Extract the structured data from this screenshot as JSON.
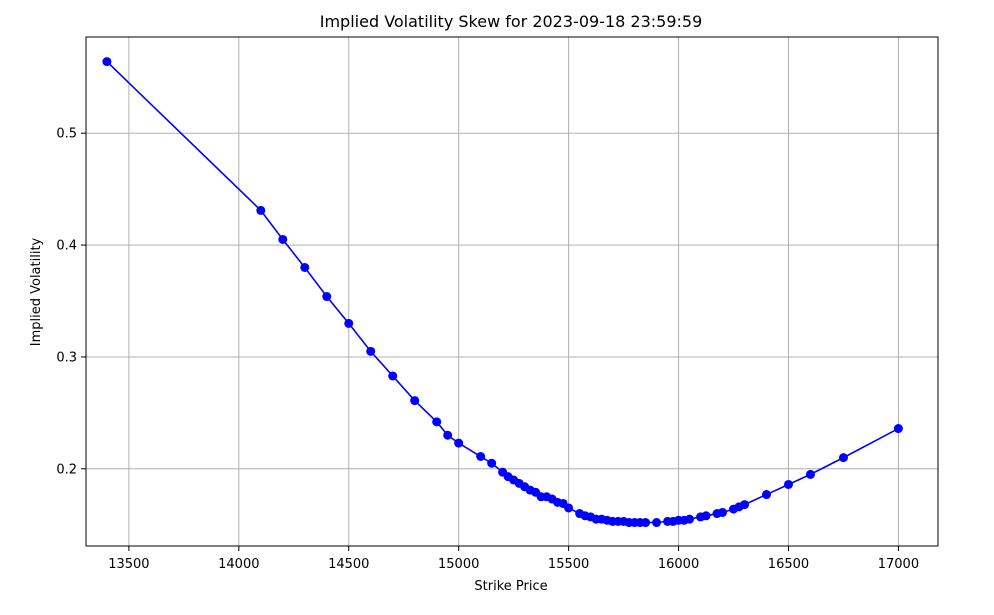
{
  "chart_data": {
    "type": "line",
    "title": "Implied Volatility Skew for 2023-09-18 23:59:59",
    "xlabel": "Strike Price",
    "ylabel": "Implied Volatility",
    "xlim": [
      13305,
      17180
    ],
    "ylim": [
      0.131,
      0.586
    ],
    "x_ticks": [
      13500,
      14000,
      14500,
      15000,
      15500,
      16000,
      16500,
      17000
    ],
    "y_ticks": [
      0.2,
      0.3,
      0.4,
      0.5
    ],
    "x_tick_labels": [
      "13500",
      "14000",
      "14500",
      "15000",
      "15500",
      "16000",
      "16500",
      "17000"
    ],
    "y_tick_labels": [
      "0.2",
      "0.3",
      "0.4",
      "0.5"
    ],
    "grid": true,
    "colors": {
      "series": "#0000ff",
      "grid": "#b0b0b0"
    },
    "series": [
      {
        "marker": "circle",
        "x": [
          13400,
          14100,
          14200,
          14300,
          14400,
          14500,
          14600,
          14700,
          14800,
          14900,
          14950,
          15000,
          15100,
          15150,
          15200,
          15225,
          15250,
          15275,
          15300,
          15325,
          15350,
          15375,
          15400,
          15425,
          15450,
          15475,
          15500,
          15550,
          15575,
          15600,
          15625,
          15650,
          15675,
          15700,
          15725,
          15750,
          15775,
          15800,
          15825,
          15850,
          15900,
          15950,
          15975,
          16000,
          16025,
          16050,
          16100,
          16125,
          16175,
          16200,
          16250,
          16275,
          16300,
          16400,
          16500,
          16600,
          16750,
          17000
        ],
        "y": [
          0.564,
          0.431,
          0.405,
          0.38,
          0.354,
          0.33,
          0.305,
          0.283,
          0.261,
          0.242,
          0.23,
          0.223,
          0.211,
          0.205,
          0.197,
          0.193,
          0.19,
          0.187,
          0.184,
          0.181,
          0.179,
          0.175,
          0.175,
          0.173,
          0.17,
          0.169,
          0.165,
          0.16,
          0.158,
          0.157,
          0.155,
          0.155,
          0.154,
          0.153,
          0.153,
          0.153,
          0.152,
          0.152,
          0.152,
          0.152,
          0.152,
          0.153,
          0.153,
          0.154,
          0.154,
          0.155,
          0.157,
          0.158,
          0.16,
          0.161,
          0.164,
          0.166,
          0.168,
          0.177,
          0.186,
          0.195,
          0.21,
          0.236
        ]
      }
    ]
  }
}
